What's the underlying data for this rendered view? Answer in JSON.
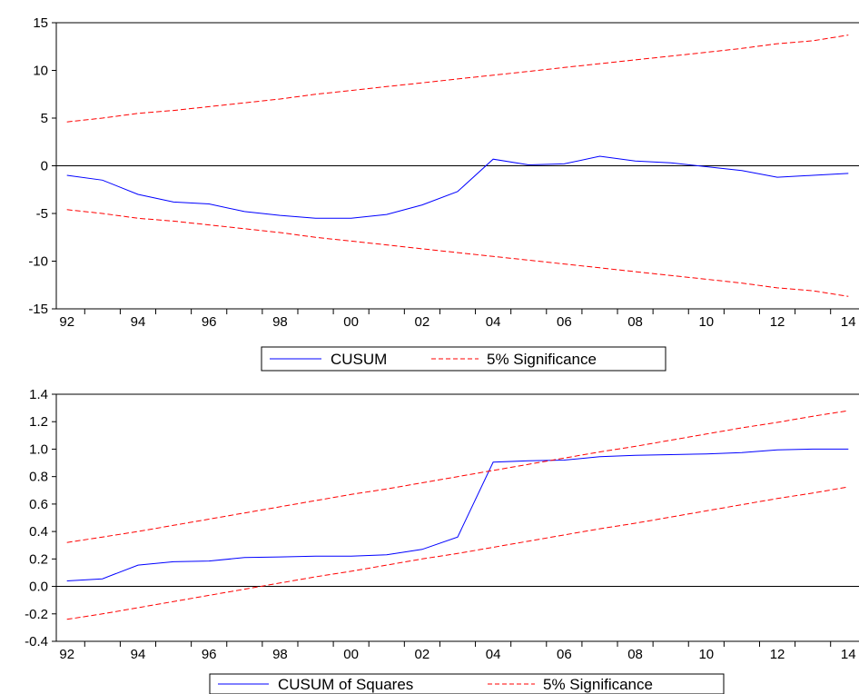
{
  "colors": {
    "series": "#0000ff",
    "bands": "#ff0000",
    "axis": "#000000",
    "background": "#ffffff"
  },
  "chart_data": [
    {
      "type": "line",
      "title": "",
      "xlabel": "",
      "ylabel": "",
      "x": [
        1992,
        1993,
        1994,
        1995,
        1996,
        1997,
        1998,
        1999,
        2000,
        2001,
        2002,
        2003,
        2004,
        2005,
        2006,
        2007,
        2008,
        2009,
        2010,
        2011,
        2012,
        2013,
        2014
      ],
      "xlim": [
        1991.7,
        2014.3
      ],
      "ylim": [
        -15,
        15
      ],
      "x_tick_labels": [
        "92",
        "94",
        "96",
        "98",
        "00",
        "02",
        "04",
        "06",
        "08",
        "10",
        "12",
        "14"
      ],
      "y_tick_labels": [
        "15",
        "10",
        "5",
        "0",
        "-5",
        "-10",
        "-15"
      ],
      "y_tick_values": [
        15,
        10,
        5,
        0,
        -5,
        -10,
        -15
      ],
      "zero_line": true,
      "legend_position": "bottom-center",
      "series": [
        {
          "name": "CUSUM",
          "style": "solid",
          "values": [
            -1.0,
            -1.5,
            -3.0,
            -3.8,
            -4.0,
            -4.8,
            -5.2,
            -5.5,
            -5.5,
            -5.1,
            -4.1,
            -2.7,
            0.7,
            0.1,
            0.2,
            1.0,
            0.5,
            0.3,
            -0.1,
            -0.5,
            -1.2,
            -1.0,
            -0.8
          ]
        },
        {
          "name": "5% Significance",
          "style": "dashed",
          "band_pair": "upper",
          "values": [
            4.6,
            5.0,
            5.5,
            5.8,
            6.2,
            6.6,
            7.0,
            7.5,
            7.9,
            8.3,
            8.7,
            9.1,
            9.5,
            9.9,
            10.3,
            10.7,
            11.1,
            11.5,
            11.9,
            12.3,
            12.8,
            13.1,
            13.7
          ]
        },
        {
          "name": "",
          "style": "dashed",
          "band_pair": "lower",
          "values": [
            -4.6,
            -5.0,
            -5.5,
            -5.8,
            -6.2,
            -6.6,
            -7.0,
            -7.5,
            -7.9,
            -8.3,
            -8.7,
            -9.1,
            -9.5,
            -9.9,
            -10.3,
            -10.7,
            -11.1,
            -11.5,
            -11.9,
            -12.3,
            -12.8,
            -13.1,
            -13.7
          ]
        }
      ]
    },
    {
      "type": "line",
      "title": "",
      "xlabel": "",
      "ylabel": "",
      "x": [
        1992,
        1993,
        1994,
        1995,
        1996,
        1997,
        1998,
        1999,
        2000,
        2001,
        2002,
        2003,
        2004,
        2005,
        2006,
        2007,
        2008,
        2009,
        2010,
        2011,
        2012,
        2013,
        2014
      ],
      "xlim": [
        1991.7,
        2014.3
      ],
      "ylim": [
        -0.4,
        1.4
      ],
      "x_tick_labels": [
        "92",
        "94",
        "96",
        "98",
        "00",
        "02",
        "04",
        "06",
        "08",
        "10",
        "12",
        "14"
      ],
      "y_tick_labels": [
        "1.4",
        "1.2",
        "1.0",
        "0.8",
        "0.6",
        "0.4",
        "0.2",
        "0.0",
        "-0.2",
        "-0.4"
      ],
      "y_tick_values": [
        1.4,
        1.2,
        1.0,
        0.8,
        0.6,
        0.4,
        0.2,
        0.0,
        -0.2,
        -0.4
      ],
      "zero_line": true,
      "legend_position": "bottom-center",
      "series": [
        {
          "name": "CUSUM of Squares",
          "style": "solid",
          "values": [
            0.04,
            0.055,
            0.155,
            0.18,
            0.185,
            0.21,
            0.215,
            0.22,
            0.22,
            0.23,
            0.27,
            0.36,
            0.905,
            0.915,
            0.92,
            0.945,
            0.955,
            0.96,
            0.965,
            0.975,
            0.995,
            1.0,
            1.0
          ]
        },
        {
          "name": "5% Significance",
          "style": "dashed",
          "band_pair": "upper",
          "values": [
            0.32,
            0.36,
            0.4,
            0.445,
            0.49,
            0.535,
            0.58,
            0.625,
            0.67,
            0.71,
            0.755,
            0.8,
            0.845,
            0.89,
            0.935,
            0.98,
            1.02,
            1.065,
            1.11,
            1.155,
            1.195,
            1.24,
            1.28
          ]
        },
        {
          "name": "",
          "style": "dashed",
          "band_pair": "lower",
          "values": [
            -0.24,
            -0.2,
            -0.155,
            -0.11,
            -0.065,
            -0.02,
            0.025,
            0.07,
            0.11,
            0.155,
            0.2,
            0.24,
            0.285,
            0.33,
            0.375,
            0.42,
            0.46,
            0.505,
            0.55,
            0.595,
            0.64,
            0.68,
            0.725
          ]
        }
      ]
    }
  ]
}
